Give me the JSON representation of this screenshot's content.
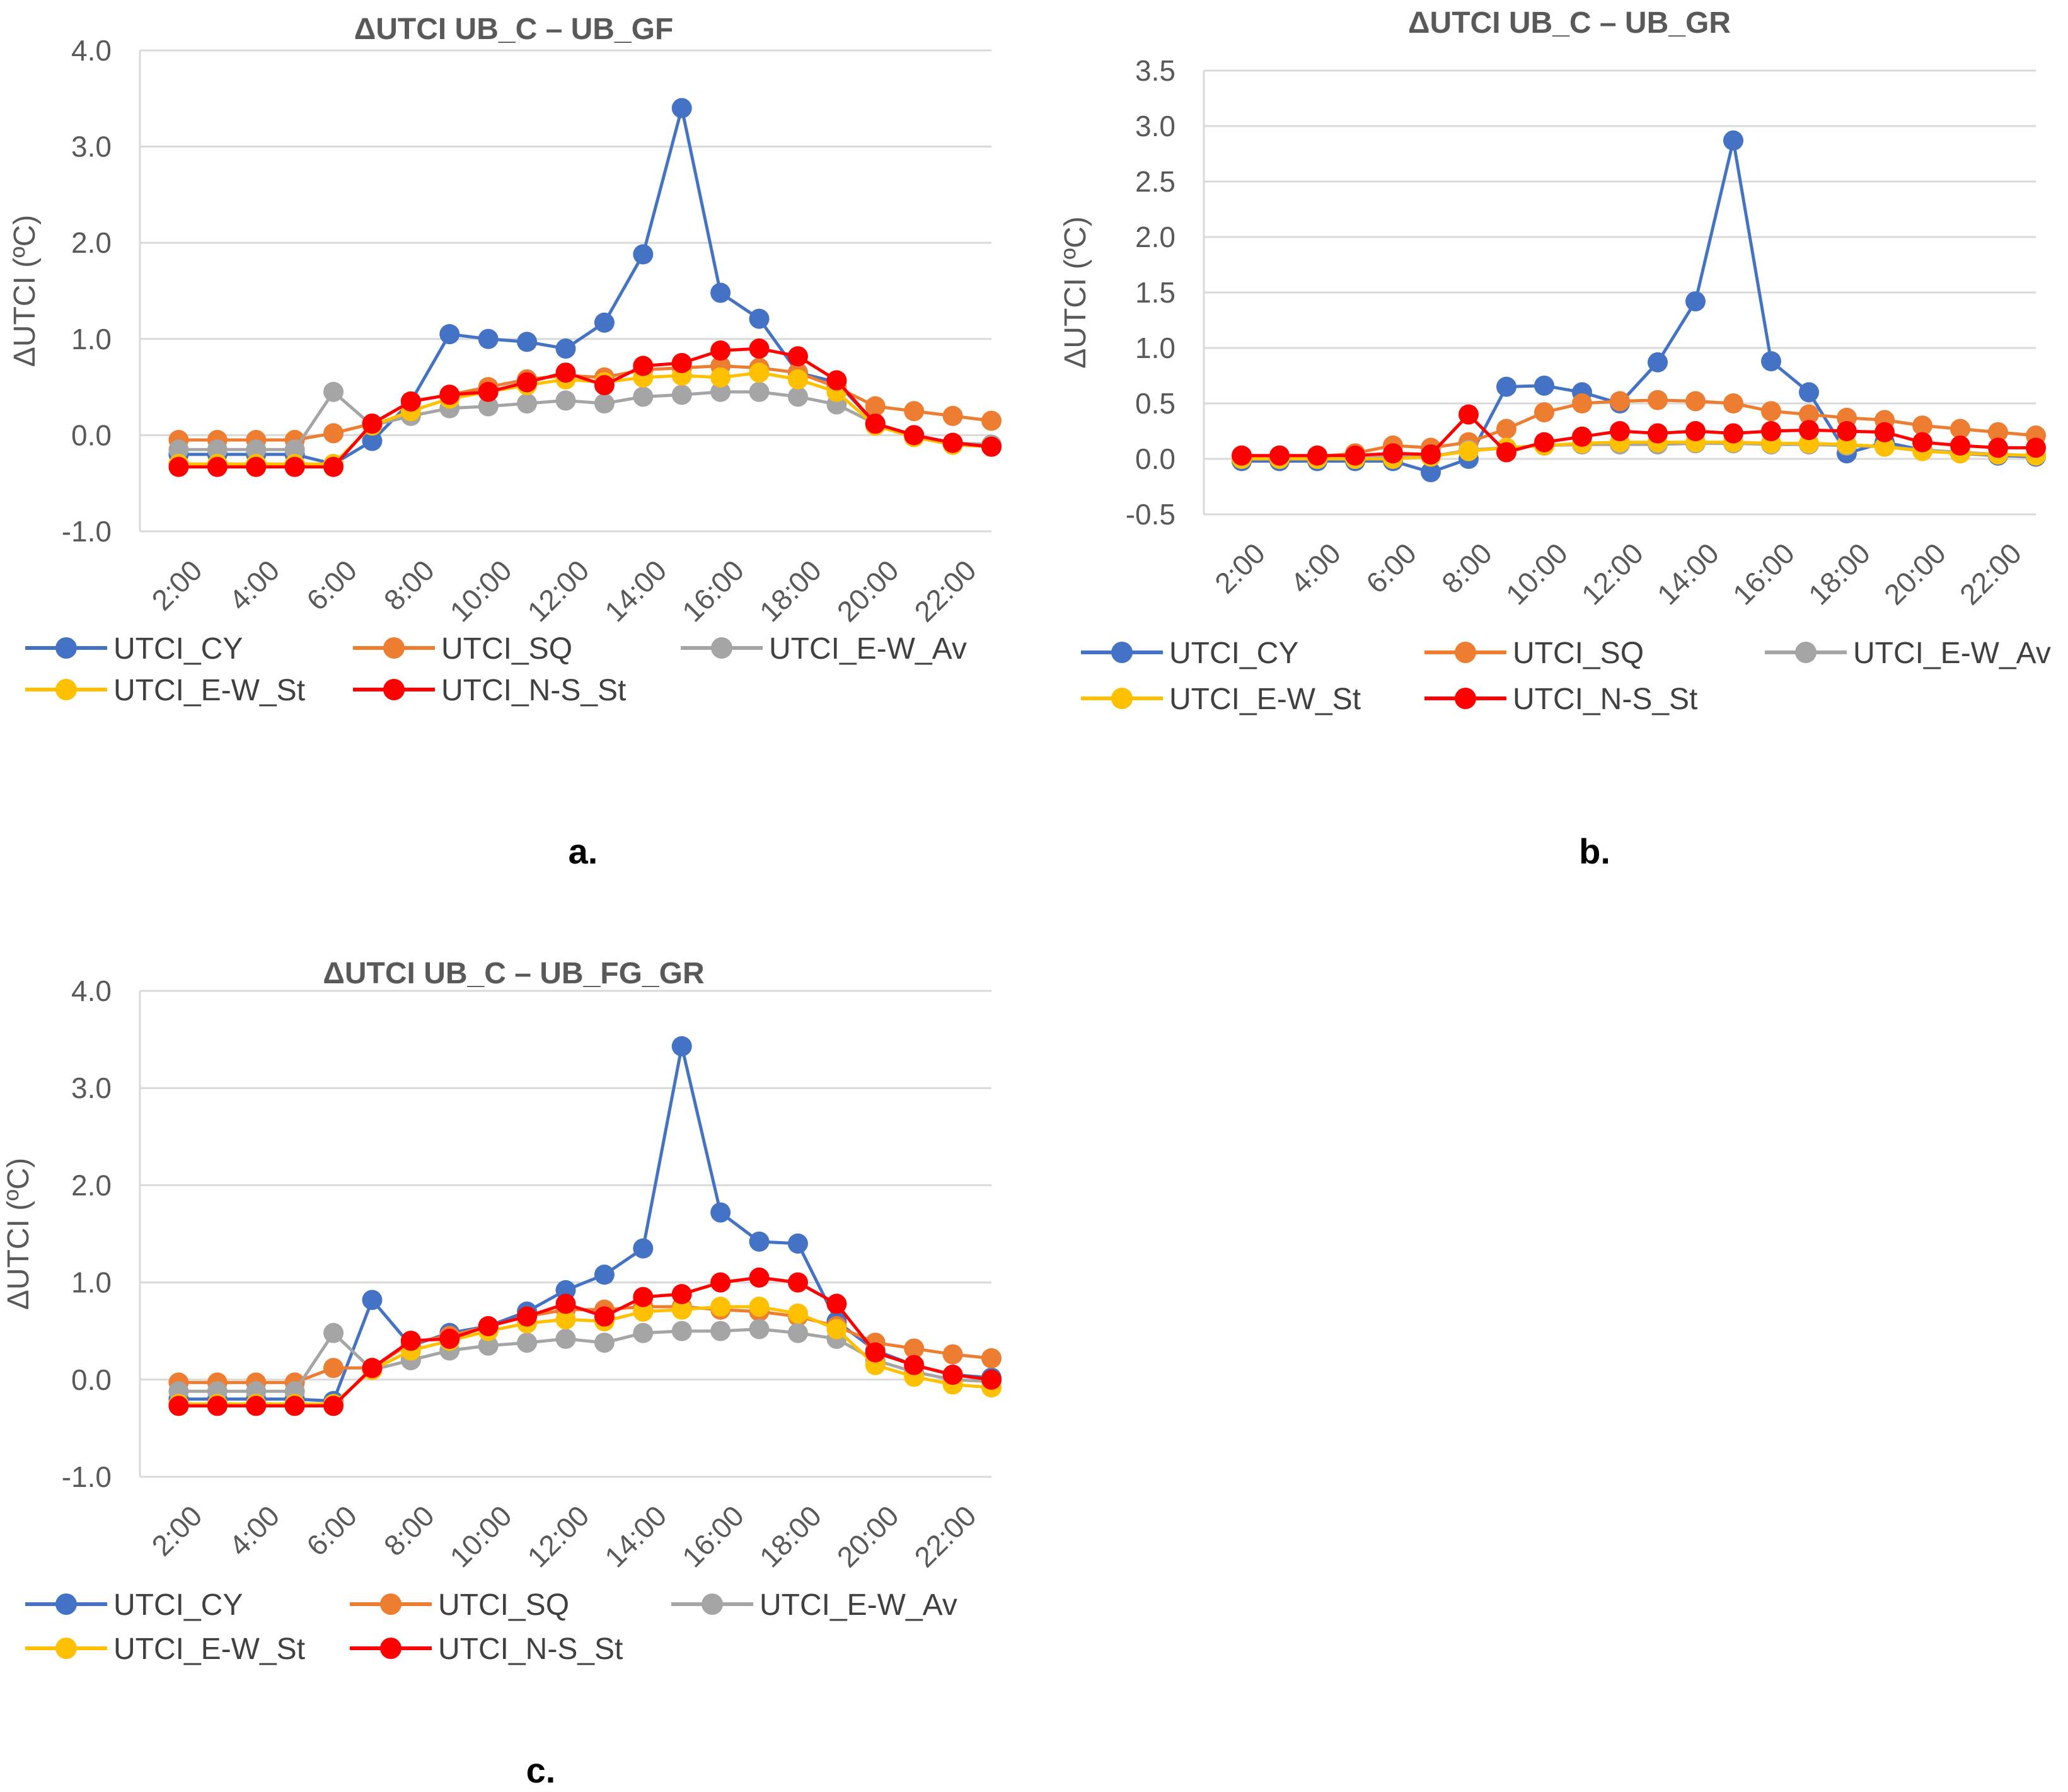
{
  "chart_data": [
    {
      "type": "line",
      "title": "ΔUTCI UB_C – UB_GF",
      "caption": "a.",
      "ylabel": "ΔUTCI (ºC)",
      "xlabel": "",
      "ylim": [
        -1.0,
        4.0
      ],
      "yticks": [
        -1.0,
        0.0,
        1.0,
        2.0,
        3.0,
        4.0
      ],
      "ytick_labels": [
        "-1.0",
        "0.0",
        "1.0",
        "2.0",
        "3.0",
        "4.0"
      ],
      "tick_labels": [
        "2:00",
        "4:00",
        "6:00",
        "8:00",
        "10:00",
        "12:00",
        "14:00",
        "16:00",
        "18:00",
        "20:00",
        "22:00"
      ],
      "x": [
        2,
        3,
        4,
        5,
        6,
        7,
        8,
        9,
        10,
        11,
        12,
        13,
        14,
        15,
        16,
        17,
        18,
        19,
        20,
        21,
        22,
        23
      ],
      "grid": true,
      "legend": "bottom",
      "series": [
        {
          "name": "UTCI_CY",
          "color": "#4472C4",
          "values": [
            -0.2,
            -0.2,
            -0.2,
            -0.2,
            -0.3,
            -0.06,
            0.35,
            1.05,
            1.0,
            0.97,
            0.9,
            1.17,
            1.88,
            3.4,
            1.48,
            1.21,
            0.65,
            0.55,
            0.12,
            0.0,
            -0.08,
            -0.1
          ]
        },
        {
          "name": "UTCI_SQ",
          "color": "#ED7D31",
          "values": [
            -0.05,
            -0.05,
            -0.05,
            -0.05,
            0.02,
            0.12,
            0.35,
            0.42,
            0.5,
            0.58,
            0.62,
            0.6,
            0.68,
            0.7,
            0.72,
            0.7,
            0.65,
            0.5,
            0.3,
            0.25,
            0.2,
            0.15
          ]
        },
        {
          "name": "UTCI_E-W_Av",
          "color": "#A5A5A5",
          "values": [
            -0.15,
            -0.15,
            -0.15,
            -0.15,
            0.45,
            0.1,
            0.2,
            0.28,
            0.3,
            0.33,
            0.36,
            0.33,
            0.4,
            0.42,
            0.45,
            0.45,
            0.4,
            0.32,
            0.12,
            0.0,
            -0.08,
            -0.1
          ]
        },
        {
          "name": "UTCI_E-W_St",
          "color": "#FFC000",
          "values": [
            -0.3,
            -0.3,
            -0.3,
            -0.3,
            -0.3,
            0.1,
            0.25,
            0.38,
            0.45,
            0.52,
            0.58,
            0.55,
            0.6,
            0.62,
            0.6,
            0.65,
            0.58,
            0.45,
            0.1,
            -0.02,
            -0.1,
            -0.12
          ]
        },
        {
          "name": "UTCI_N-S_St",
          "color": "#FF0000",
          "values": [
            -0.33,
            -0.33,
            -0.33,
            -0.33,
            -0.33,
            0.12,
            0.35,
            0.42,
            0.45,
            0.55,
            0.65,
            0.52,
            0.72,
            0.75,
            0.88,
            0.9,
            0.82,
            0.57,
            0.12,
            0.0,
            -0.08,
            -0.12
          ]
        }
      ]
    },
    {
      "type": "line",
      "title": "ΔUTCI UB_C – UB_GR",
      "caption": "b.",
      "ylabel": "ΔUTCI (ºC)",
      "xlabel": "",
      "ylim": [
        -0.5,
        3.5
      ],
      "yticks": [
        -0.5,
        0.0,
        0.5,
        1.0,
        1.5,
        2.0,
        2.5,
        3.0,
        3.5
      ],
      "ytick_labels": [
        "-0.5",
        "0.0",
        "0.5",
        "1.0",
        "1.5",
        "2.0",
        "2.5",
        "3.0",
        "3.5"
      ],
      "tick_labels": [
        "2:00",
        "4:00",
        "6:00",
        "8:00",
        "10:00",
        "12:00",
        "14:00",
        "16:00",
        "18:00",
        "20:00",
        "22:00"
      ],
      "x": [
        2,
        3,
        4,
        5,
        6,
        7,
        8,
        9,
        10,
        11,
        12,
        13,
        14,
        15,
        16,
        17,
        18,
        19,
        20,
        21,
        22,
        23
      ],
      "grid": true,
      "legend": "bottom",
      "series": [
        {
          "name": "UTCI_CY",
          "color": "#4472C4",
          "values": [
            -0.02,
            -0.02,
            -0.02,
            -0.02,
            -0.02,
            -0.12,
            0.0,
            0.65,
            0.66,
            0.6,
            0.5,
            0.87,
            1.42,
            2.87,
            0.88,
            0.6,
            0.05,
            0.15,
            0.08,
            0.05,
            0.03,
            0.02
          ]
        },
        {
          "name": "UTCI_SQ",
          "color": "#ED7D31",
          "values": [
            0.02,
            0.02,
            0.02,
            0.05,
            0.12,
            0.1,
            0.15,
            0.27,
            0.42,
            0.5,
            0.52,
            0.53,
            0.52,
            0.5,
            0.43,
            0.4,
            0.37,
            0.35,
            0.3,
            0.27,
            0.24,
            0.21
          ]
        },
        {
          "name": "UTCI_E-W_Av",
          "color": "#A5A5A5",
          "values": [
            0.0,
            0.0,
            0.0,
            0.0,
            0.02,
            0.02,
            0.08,
            0.1,
            0.12,
            0.13,
            0.13,
            0.13,
            0.14,
            0.14,
            0.13,
            0.13,
            0.12,
            0.11,
            0.08,
            0.06,
            0.04,
            0.03
          ]
        },
        {
          "name": "UTCI_E-W_St",
          "color": "#FFC000",
          "values": [
            0.0,
            0.0,
            0.0,
            0.0,
            0.0,
            0.02,
            0.07,
            0.1,
            0.12,
            0.14,
            0.15,
            0.15,
            0.15,
            0.15,
            0.14,
            0.14,
            0.13,
            0.11,
            0.07,
            0.05,
            0.04,
            0.03
          ]
        },
        {
          "name": "UTCI_N-S_St",
          "color": "#FF0000",
          "values": [
            0.03,
            0.03,
            0.03,
            0.03,
            0.05,
            0.04,
            0.4,
            0.06,
            0.15,
            0.2,
            0.25,
            0.23,
            0.25,
            0.23,
            0.25,
            0.26,
            0.25,
            0.24,
            0.15,
            0.12,
            0.1,
            0.1
          ]
        }
      ]
    },
    {
      "type": "line",
      "title": "ΔUTCI UB_C – UB_FG_GR",
      "caption": "c.",
      "ylabel": "ΔUTCI (ºC)",
      "xlabel": "",
      "ylim": [
        -1.0,
        4.0
      ],
      "yticks": [
        -1.0,
        0.0,
        1.0,
        2.0,
        3.0,
        4.0
      ],
      "ytick_labels": [
        "-1.0",
        "0.0",
        "1.0",
        "2.0",
        "3.0",
        "4.0"
      ],
      "tick_labels": [
        "2:00",
        "4:00",
        "6:00",
        "8:00",
        "10:00",
        "12:00",
        "14:00",
        "16:00",
        "18:00",
        "20:00",
        "22:00"
      ],
      "x": [
        2,
        3,
        4,
        5,
        6,
        7,
        8,
        9,
        10,
        11,
        12,
        13,
        14,
        15,
        16,
        17,
        18,
        19,
        20,
        21,
        22,
        23
      ],
      "grid": true,
      "legend": "bottom",
      "series": [
        {
          "name": "UTCI_CY",
          "color": "#4472C4",
          "values": [
            -0.2,
            -0.2,
            -0.2,
            -0.2,
            -0.22,
            0.82,
            0.35,
            0.48,
            0.55,
            0.7,
            0.92,
            1.08,
            1.35,
            3.43,
            1.72,
            1.42,
            1.4,
            0.6,
            0.3,
            0.15,
            0.05,
            0.02
          ]
        },
        {
          "name": "UTCI_SQ",
          "color": "#ED7D31",
          "values": [
            -0.03,
            -0.03,
            -0.03,
            -0.03,
            0.12,
            0.12,
            0.38,
            0.45,
            0.55,
            0.65,
            0.72,
            0.72,
            0.75,
            0.75,
            0.72,
            0.7,
            0.65,
            0.55,
            0.38,
            0.32,
            0.26,
            0.22
          ]
        },
        {
          "name": "UTCI_E-W_Av",
          "color": "#A5A5A5",
          "values": [
            -0.12,
            -0.12,
            -0.12,
            -0.12,
            0.48,
            0.1,
            0.2,
            0.3,
            0.35,
            0.38,
            0.42,
            0.38,
            0.48,
            0.5,
            0.5,
            0.52,
            0.48,
            0.42,
            0.2,
            0.08,
            0.0,
            -0.02
          ]
        },
        {
          "name": "UTCI_E-W_St",
          "color": "#FFC000",
          "values": [
            -0.25,
            -0.25,
            -0.25,
            -0.25,
            -0.25,
            0.1,
            0.3,
            0.4,
            0.5,
            0.58,
            0.62,
            0.6,
            0.7,
            0.72,
            0.75,
            0.75,
            0.68,
            0.52,
            0.15,
            0.03,
            -0.05,
            -0.08
          ]
        },
        {
          "name": "UTCI_N-S_St",
          "color": "#FF0000",
          "values": [
            -0.27,
            -0.27,
            -0.27,
            -0.27,
            -0.27,
            0.12,
            0.4,
            0.42,
            0.55,
            0.65,
            0.78,
            0.65,
            0.85,
            0.88,
            1.0,
            1.05,
            1.0,
            0.78,
            0.28,
            0.15,
            0.05,
            0.0
          ]
        }
      ]
    }
  ]
}
